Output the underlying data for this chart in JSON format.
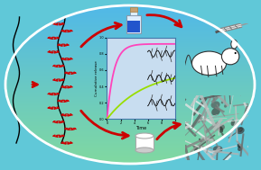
{
  "bg_fig": "#60c8d8",
  "bg_ellipse_top_color": "#80d8a0",
  "bg_ellipse_bottom_color": "#50b8e8",
  "arrow_color": "#cc0000",
  "plot_bg": "#c8ddf0",
  "plot_border": "#4477aa",
  "curve1_color": "#ff44bb",
  "curve2_color": "#99dd00",
  "xlabel": "Time",
  "ylabel": "Cumulative release",
  "figsize": [
    2.89,
    1.89
  ],
  "dpi": 100
}
